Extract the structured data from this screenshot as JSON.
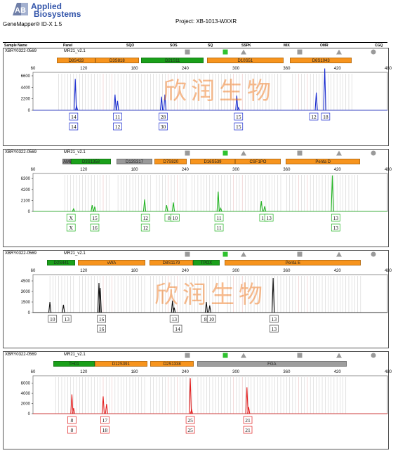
{
  "header": {
    "brand_line1": "Applied",
    "brand_line2": "Biosystems",
    "product": "GeneMapper® ID-X  1.5",
    "project": "Project: XB-1013-WXXR",
    "columns": [
      "Sample Name",
      "Panel",
      "SQO",
      "SOS",
      "SQ",
      "SSPK",
      "MIX",
      "OMR",
      "CGQ"
    ]
  },
  "watermark": "欣润生物",
  "chart_data": [
    {
      "type": "line",
      "dye": "blue",
      "color": "#1a2ccf",
      "sample": "XBRY0322-0569",
      "kit": "MR21_v2.1",
      "x_ticks": [
        60,
        120,
        180,
        240,
        300,
        360,
        420,
        480
      ],
      "xlim": [
        60,
        480
      ],
      "y_ticks": [
        6600,
        4400,
        2200,
        0
      ],
      "ylim": [
        0,
        7000
      ],
      "markers": [
        "square-gray",
        "square-green",
        "triangle-gray",
        "square-gray",
        "triangle-gray",
        "circle-gray"
      ],
      "loci": [
        {
          "name": "D8S433",
          "start": 88,
          "end": 134,
          "color": "#f7941d"
        },
        {
          "name": "D3S818",
          "start": 134,
          "end": 185,
          "color": "#f7941d"
        },
        {
          "name": "D21S11",
          "start": 188,
          "end": 262,
          "color": "#1aa01a"
        },
        {
          "name": "D10S51",
          "start": 266,
          "end": 356,
          "color": "#f7941d"
        },
        {
          "name": "D6S1043",
          "start": 364,
          "end": 437,
          "color": "#f7941d"
        }
      ],
      "peaks": [
        {
          "x": 110,
          "y": 6000
        },
        {
          "x": 111.5,
          "y": 800
        },
        {
          "x": 157,
          "y": 3000
        },
        {
          "x": 160,
          "y": 1800
        },
        {
          "x": 212,
          "y": 2600
        },
        {
          "x": 216,
          "y": 3000
        },
        {
          "x": 301,
          "y": 2800
        },
        {
          "x": 303,
          "y": 500
        },
        {
          "x": 395,
          "y": 3400
        },
        {
          "x": 405,
          "y": 8000
        }
      ],
      "calls": [
        {
          "x": 108,
          "labels": [
            "14",
            "14"
          ]
        },
        {
          "x": 160,
          "labels": [
            "11",
            "12"
          ]
        },
        {
          "x": 214,
          "labels": [
            "28",
            "30"
          ]
        },
        {
          "x": 303,
          "labels": [
            "15",
            "15"
          ]
        },
        {
          "x": 392,
          "labels": [
            "12"
          ]
        },
        {
          "x": 406,
          "labels": [
            "18"
          ]
        }
      ]
    },
    {
      "type": "line",
      "dye": "green",
      "color": "#22b422",
      "sample": "XBRY0322-0569",
      "kit": "MR21_v2.1",
      "x_ticks": [
        60,
        120,
        180,
        240,
        300,
        360,
        420,
        480
      ],
      "xlim": [
        60,
        480
      ],
      "y_ticks": [
        6300,
        4200,
        2100,
        0
      ],
      "ylim": [
        0,
        7000
      ],
      "markers": [
        "square-gray",
        "square-green",
        "triangle-gray",
        "square-gray",
        "triangle-gray",
        "circle-gray"
      ],
      "loci": [
        {
          "name": "AME",
          "start": 95,
          "end": 105,
          "color": "#888888"
        },
        {
          "name": "D3S1358",
          "start": 105,
          "end": 152,
          "color": "#1aa01a"
        },
        {
          "name": "D13S317",
          "start": 159,
          "end": 201,
          "color": "#999999"
        },
        {
          "name": "D7S820",
          "start": 204,
          "end": 242,
          "color": "#f7941d"
        },
        {
          "name": "D16S539",
          "start": 246,
          "end": 299,
          "color": "#f7941d"
        },
        {
          "name": "CSF1PO",
          "start": 299,
          "end": 353,
          "color": "#f7941d"
        },
        {
          "name": "Penta D",
          "start": 359,
          "end": 447,
          "color": "#f7941d"
        }
      ],
      "peaks": [
        {
          "x": 108,
          "y": 500
        },
        {
          "x": 130,
          "y": 1200
        },
        {
          "x": 133,
          "y": 900
        },
        {
          "x": 192,
          "y": 2300
        },
        {
          "x": 218,
          "y": 1200
        },
        {
          "x": 226,
          "y": 1700
        },
        {
          "x": 279,
          "y": 3800
        },
        {
          "x": 282,
          "y": 600
        },
        {
          "x": 330,
          "y": 2000
        },
        {
          "x": 334,
          "y": 1000
        },
        {
          "x": 414,
          "y": 6900
        }
      ],
      "calls": [
        {
          "x": 105,
          "labels": [
            "X",
            "X"
          ]
        },
        {
          "x": 133,
          "labels": [
            "15",
            "16"
          ]
        },
        {
          "x": 193,
          "labels": [
            "12",
            "12"
          ]
        },
        {
          "x": 221,
          "labels": [
            "8"
          ]
        },
        {
          "x": 228,
          "labels": [
            "10"
          ]
        },
        {
          "x": 280,
          "labels": [
            "11",
            "11"
          ]
        },
        {
          "x": 333,
          "labels": [
            "11"
          ]
        },
        {
          "x": 339,
          "labels": [
            "13"
          ]
        },
        {
          "x": 418,
          "labels": [
            "13",
            "13"
          ]
        }
      ]
    },
    {
      "type": "line",
      "dye": "black",
      "color": "#111111",
      "sample": "XBRY0322-0569",
      "kit": "MR21_v2.1",
      "x_ticks": [
        60,
        120,
        180,
        240,
        300,
        360,
        420,
        480
      ],
      "xlim": [
        60,
        480
      ],
      "y_ticks": [
        4500,
        3000,
        1500,
        0
      ],
      "ylim": [
        0,
        5200
      ],
      "markers": [
        "square-gray",
        "square-green",
        "triangle-gray",
        "square-gray",
        "triangle-gray",
        "circle-gray"
      ],
      "loci": [
        {
          "name": "D2S441",
          "start": 77,
          "end": 110,
          "color": "#1aa01a"
        },
        {
          "name": "vWA",
          "start": 113,
          "end": 193,
          "color": "#f7941d"
        },
        {
          "name": "D8S1179",
          "start": 198,
          "end": 249,
          "color": "#f7941d"
        },
        {
          "name": "TPOX",
          "start": 249,
          "end": 281,
          "color": "#1aa01a"
        },
        {
          "name": "Penta E",
          "start": 287,
          "end": 448,
          "color": "#f7941d"
        }
      ],
      "peaks": [
        {
          "x": 80,
          "y": 1500
        },
        {
          "x": 96,
          "y": 1100
        },
        {
          "x": 138,
          "y": 4200
        },
        {
          "x": 139.5,
          "y": 3500
        },
        {
          "x": 225,
          "y": 1700
        },
        {
          "x": 227,
          "y": 700
        },
        {
          "x": 265,
          "y": 1500
        },
        {
          "x": 269,
          "y": 1000
        },
        {
          "x": 344,
          "y": 4900
        }
      ],
      "calls": [
        {
          "x": 83,
          "labels": [
            "10"
          ]
        },
        {
          "x": 100,
          "labels": [
            "13"
          ]
        },
        {
          "x": 141,
          "labels": [
            "16",
            "16"
          ]
        },
        {
          "x": 227,
          "labels": [
            "13"
          ]
        },
        {
          "x": 231,
          "labels": [
            "",
            "14"
          ]
        },
        {
          "x": 264,
          "labels": [
            "8"
          ]
        },
        {
          "x": 271,
          "labels": [
            "10"
          ]
        },
        {
          "x": 345,
          "labels": [
            "13",
            "13"
          ]
        }
      ]
    },
    {
      "type": "line",
      "dye": "red",
      "color": "#e22020",
      "sample": "XBRY0322-0569",
      "kit": "MR21_v2.1",
      "x_ticks": [
        60,
        120,
        180,
        240,
        300,
        360,
        420,
        480
      ],
      "xlim": [
        60,
        480
      ],
      "y_ticks": [
        6000,
        4000,
        2000,
        0
      ],
      "ylim": [
        0,
        7200
      ],
      "markers": [
        "square-gray",
        "square-green",
        "triangle-gray",
        "square-gray",
        "triangle-gray",
        "circle-gray"
      ],
      "loci": [
        {
          "name": "TH01",
          "start": 84,
          "end": 133,
          "color": "#1aa01a"
        },
        {
          "name": "D12S391",
          "start": 133,
          "end": 195,
          "color": "#f7941d"
        },
        {
          "name": "D2S1338",
          "start": 199,
          "end": 250,
          "color": "#f7941d"
        },
        {
          "name": "FGA",
          "start": 254,
          "end": 431,
          "color": "#9e9e9e"
        }
      ],
      "peaks": [
        {
          "x": 106,
          "y": 3800
        },
        {
          "x": 108,
          "y": 1100
        },
        {
          "x": 143,
          "y": 3400
        },
        {
          "x": 147,
          "y": 1900
        },
        {
          "x": 246,
          "y": 7000
        },
        {
          "x": 247.5,
          "y": 800
        },
        {
          "x": 313,
          "y": 5200
        },
        {
          "x": 315,
          "y": 1300
        }
      ],
      "calls": [
        {
          "x": 106,
          "labels": [
            "8",
            "8"
          ]
        },
        {
          "x": 145,
          "labels": [
            "17",
            "18"
          ]
        },
        {
          "x": 246,
          "labels": [
            "25",
            "25"
          ]
        },
        {
          "x": 314,
          "labels": [
            "21",
            "21"
          ]
        }
      ]
    }
  ]
}
